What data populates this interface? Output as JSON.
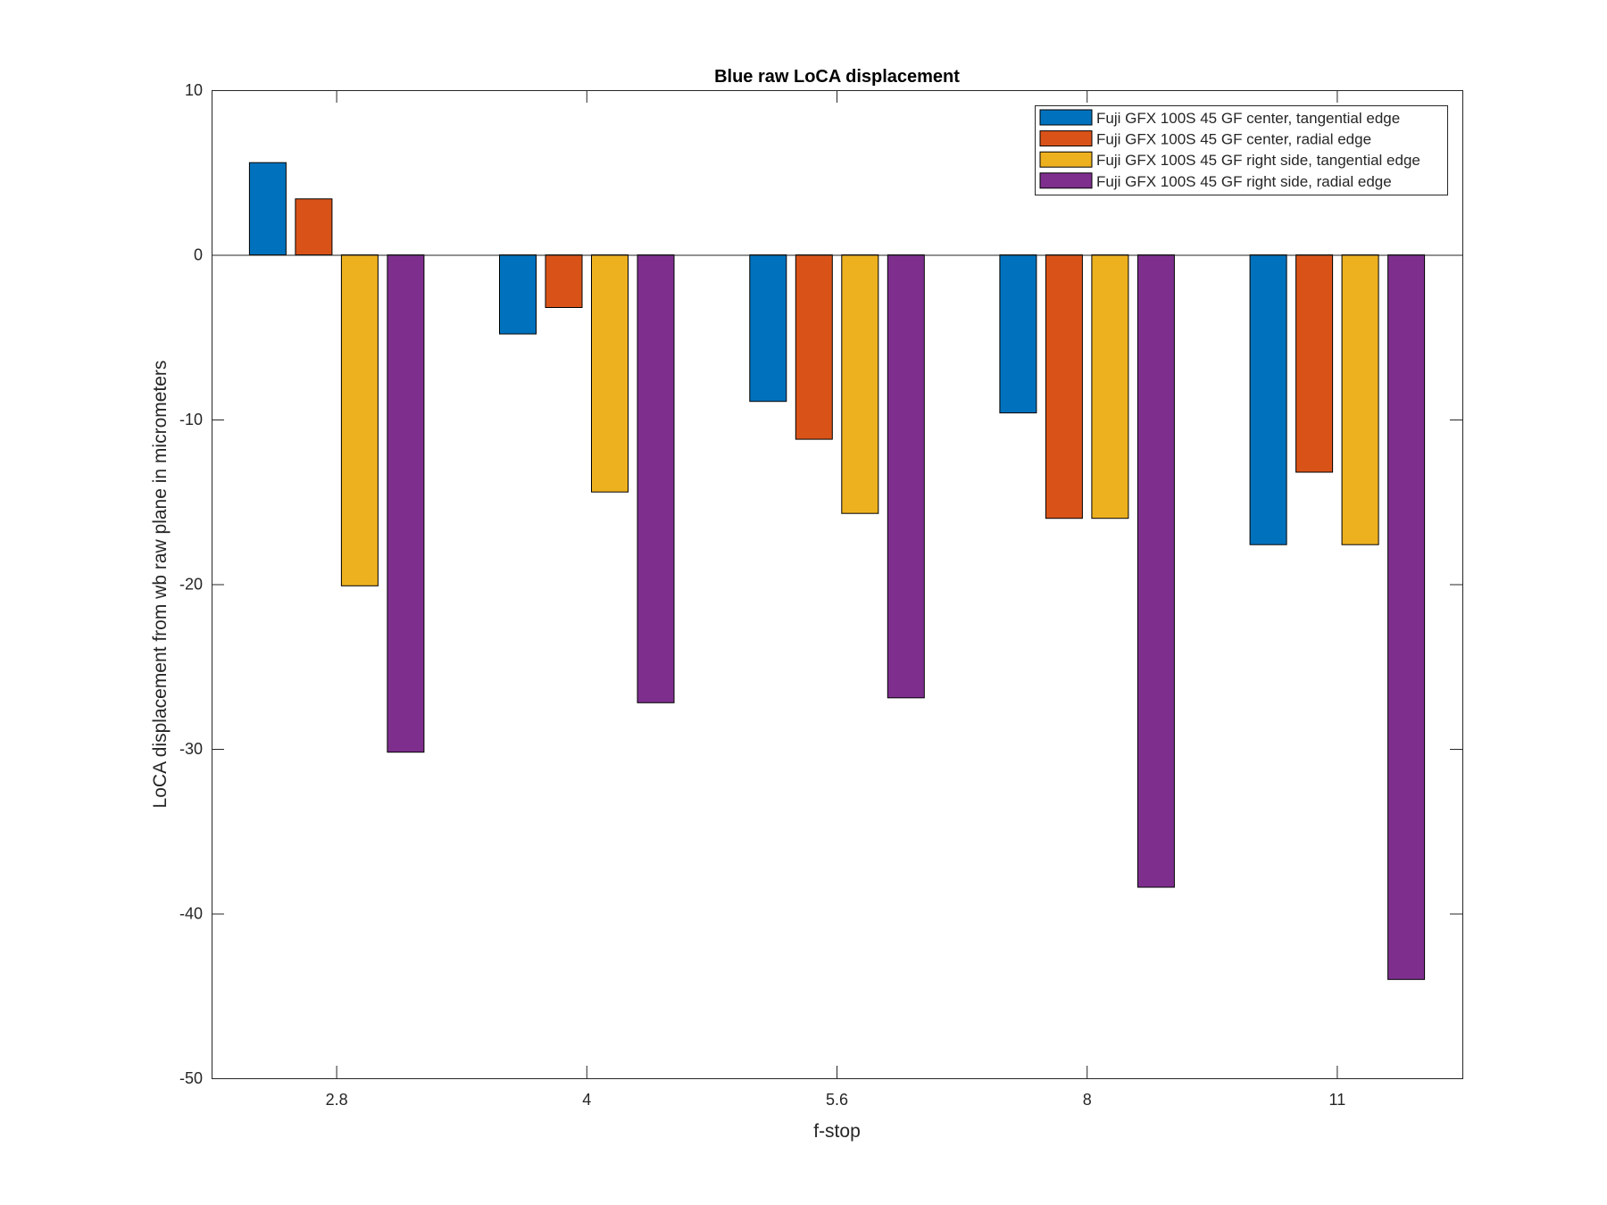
{
  "chart_data": {
    "type": "bar",
    "title": "Blue raw  LoCA displacement",
    "xlabel": "f-stop",
    "ylabel": "LoCA displacement from wb raw plane in micrometers",
    "categories": [
      "2.8",
      "4",
      "5.6",
      "8",
      "11"
    ],
    "ylim": [
      -50,
      10
    ],
    "yticks": [
      "10",
      "0",
      "-10",
      "-20",
      "-30",
      "-40",
      "-50"
    ],
    "grid": false,
    "legend_position": "top-right",
    "series": [
      {
        "name": "Fuji GFX 100S 45 GF center, tangential edge",
        "color": "#0072BD",
        "values": [
          5.6,
          -4.8,
          -8.9,
          -9.6,
          -17.6
        ]
      },
      {
        "name": "Fuji GFX 100S 45 GF center, radial edge",
        "color": "#D95319",
        "values": [
          3.4,
          -3.2,
          -11.2,
          -16.0,
          -13.2
        ]
      },
      {
        "name": "Fuji GFX 100S 45 GF right side, tangential edge",
        "color": "#EDB120",
        "values": [
          -20.1,
          -14.4,
          -15.7,
          -16.0,
          -17.6
        ]
      },
      {
        "name": "Fuji GFX 100S 45 GF right side, radial edge",
        "color": "#7E2F8E",
        "values": [
          -30.2,
          -27.2,
          -26.9,
          -38.4,
          -44.0
        ]
      }
    ]
  }
}
